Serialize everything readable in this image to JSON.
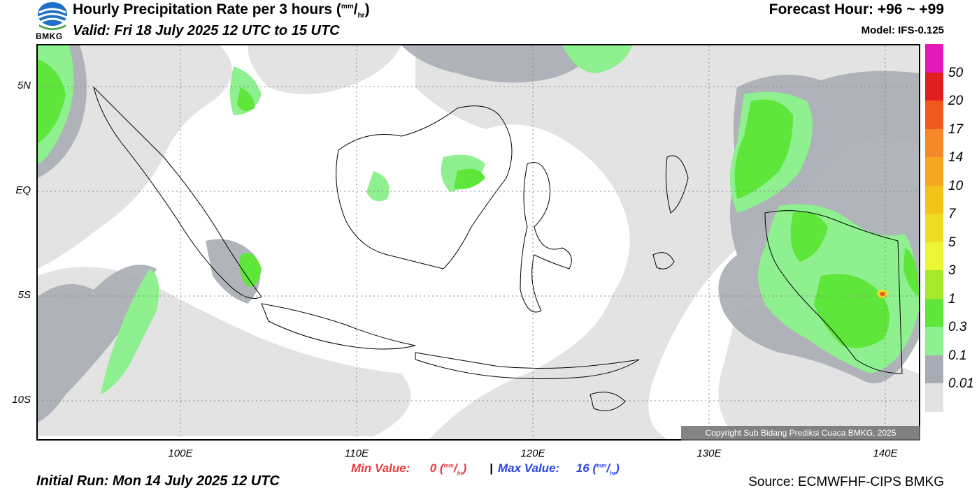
{
  "header": {
    "title": "Hourly Precipitation Rate per 3 hours",
    "unit_num": "mm",
    "unit_den": "hr",
    "valid": "Valid: Fri 18 July 2025 12 UTC to 15 UTC",
    "forecast_hour": "Forecast Hour: +96 ~ +99",
    "model": "Model: IFS-0.125",
    "logo_text": "BMKG"
  },
  "map": {
    "lat_labels": [
      "5N",
      "EQ",
      "5S",
      "10S"
    ],
    "lon_labels": [
      "100E",
      "110E",
      "120E",
      "130E",
      "140E"
    ],
    "copyright": "Copyright Sub Bidang Prediksi Cuaca BMKG, 2025"
  },
  "colorbar": {
    "labels": [
      "50",
      "20",
      "17",
      "14",
      "10",
      "7",
      "5",
      "3",
      "1",
      "0.3",
      "0.1",
      "0.01"
    ],
    "colors": [
      "#e41ab8",
      "#e02020",
      "#f05a1e",
      "#f4882a",
      "#f5a623",
      "#f2c41a",
      "#ecdc23",
      "#ecf536",
      "#a6e82c",
      "#5ee63a",
      "#8ef08e",
      "#a8acb4",
      "#e2e2e2"
    ]
  },
  "footer": {
    "min_label": "Min Value:",
    "min_value": "0",
    "max_label": "Max Value:",
    "max_value": "16",
    "separator": "|",
    "unit_num": "mm",
    "unit_den": "hr",
    "initial_run": "Initial Run: Mon 14 July 2025 12 UTC",
    "source": "Source: ECMWFHF-CIPS BMKG"
  }
}
